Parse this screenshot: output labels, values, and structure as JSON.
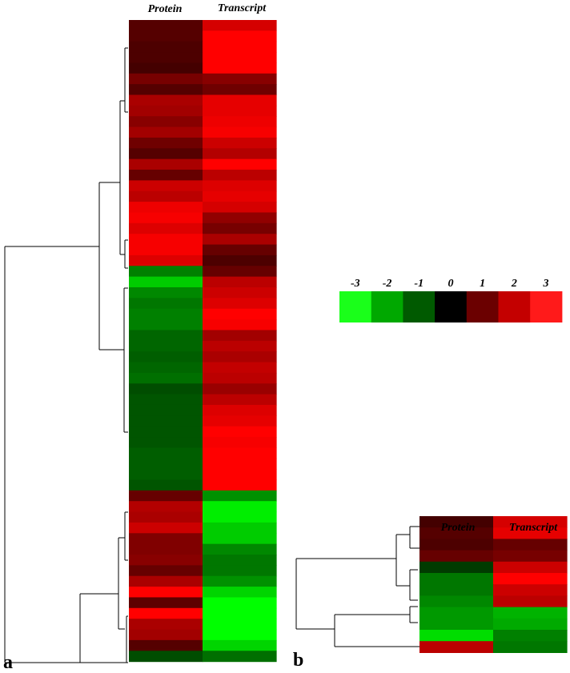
{
  "chart_data": [
    {
      "type": "heatmap",
      "panel_label": "a",
      "columns": [
        "Protein",
        "Transcript"
      ],
      "rows": [
        [
          1.0,
          2.5
        ],
        [
          1.0,
          3.0
        ],
        [
          0.9,
          3.0
        ],
        [
          0.9,
          3.0
        ],
        [
          0.8,
          3.0
        ],
        [
          1.4,
          1.6
        ],
        [
          1.0,
          1.3
        ],
        [
          2.0,
          2.7
        ],
        [
          1.9,
          2.7
        ],
        [
          1.6,
          2.8
        ],
        [
          1.9,
          2.9
        ],
        [
          1.3,
          2.4
        ],
        [
          1.0,
          2.1
        ],
        [
          2.0,
          3.0
        ],
        [
          1.2,
          2.2
        ],
        [
          2.4,
          2.6
        ],
        [
          2.2,
          2.7
        ],
        [
          2.8,
          2.5
        ],
        [
          2.9,
          1.7
        ],
        [
          2.6,
          1.4
        ],
        [
          2.9,
          2.0
        ],
        [
          2.9,
          1.2
        ],
        [
          2.6,
          0.9
        ],
        [
          -1.5,
          1.2
        ],
        [
          -2.4,
          2.2
        ],
        [
          -1.6,
          2.4
        ],
        [
          -1.4,
          2.6
        ],
        [
          -1.5,
          3.0
        ],
        [
          -1.5,
          2.9
        ],
        [
          -1.2,
          1.9
        ],
        [
          -1.2,
          2.2
        ],
        [
          -1.1,
          2.0
        ],
        [
          -1.2,
          2.3
        ],
        [
          -1.3,
          2.2
        ],
        [
          -0.9,
          1.8
        ],
        [
          -1.0,
          2.2
        ],
        [
          -1.0,
          2.6
        ],
        [
          -1.0,
          2.7
        ],
        [
          -1.0,
          3.0
        ],
        [
          -1.0,
          2.9
        ],
        [
          -1.1,
          3.0
        ],
        [
          -1.1,
          3.0
        ],
        [
          -1.1,
          3.0
        ],
        [
          -1.0,
          3.0
        ],
        [
          1.2,
          -1.7
        ],
        [
          2.1,
          -2.8
        ],
        [
          2.0,
          -2.8
        ],
        [
          2.4,
          -2.4
        ],
        [
          1.5,
          -2.4
        ],
        [
          1.5,
          -1.6
        ],
        [
          1.6,
          -1.4
        ],
        [
          1.2,
          -1.4
        ],
        [
          2.0,
          -1.7
        ],
        [
          3.0,
          -2.5
        ],
        [
          1.1,
          -3.0
        ],
        [
          3.0,
          -3.0
        ],
        [
          2.0,
          -3.0
        ],
        [
          1.9,
          -3.0
        ],
        [
          1.0,
          -2.5
        ],
        [
          -0.9,
          -1.3
        ]
      ],
      "dendrogram": "rows",
      "panel_position": "left"
    },
    {
      "type": "heatmap",
      "panel_label": "b",
      "columns": [
        "Protein",
        "Transcript"
      ],
      "rows": [
        [
          0.8,
          2.5
        ],
        [
          1.0,
          2.7
        ],
        [
          0.9,
          1.2
        ],
        [
          1.2,
          1.4
        ],
        [
          -0.7,
          2.4
        ],
        [
          -1.4,
          3.0
        ],
        [
          -1.4,
          2.4
        ],
        [
          -1.6,
          2.2
        ],
        [
          -1.8,
          -2.1
        ],
        [
          -1.8,
          -2.0
        ],
        [
          -2.6,
          -1.5
        ],
        [
          2.2,
          -1.4
        ]
      ],
      "dendrogram": "rows",
      "panel_position": "bottom-right"
    }
  ],
  "legend": {
    "ticks": [
      "-3",
      "-2",
      "-1",
      "0",
      "1",
      "2",
      "3"
    ],
    "colors": [
      "#1aff1a",
      "#00a800",
      "#005a00",
      "#000000",
      "#6b0000",
      "#c40000",
      "#ff1a1a"
    ]
  }
}
